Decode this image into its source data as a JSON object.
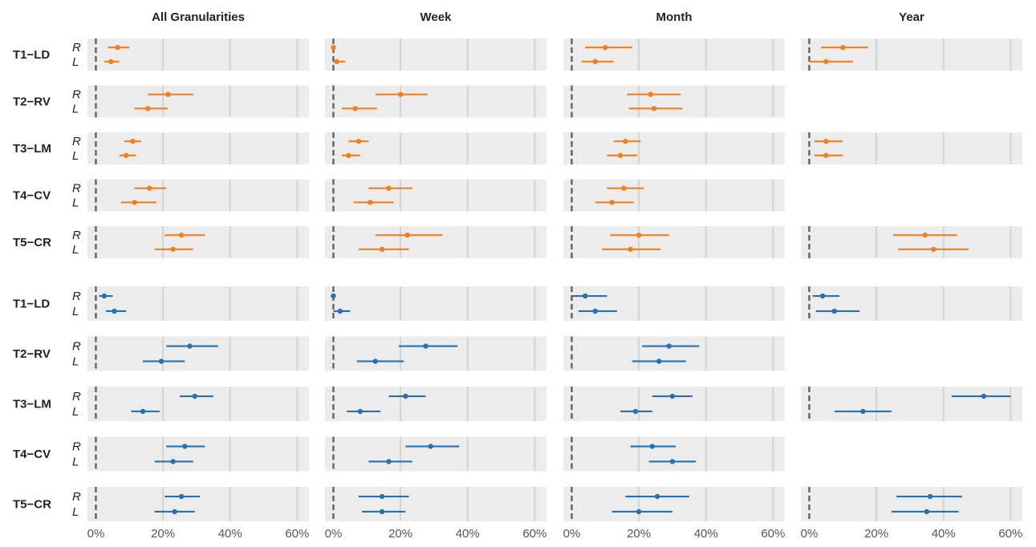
{
  "chart_data": {
    "type": "forest-interval",
    "columns": [
      "All Granularities",
      "Week",
      "Month",
      "Year"
    ],
    "xaxis": {
      "ticks": [
        0,
        20,
        40,
        60
      ],
      "tick_labels": [
        "0%",
        "20%",
        "40%",
        "60%"
      ],
      "xlim": [
        -2.5,
        63.5
      ],
      "reference_line": 0
    },
    "grid": true,
    "sides": [
      "R",
      "L"
    ],
    "colors": {
      "orange": "#f07f1e",
      "blue": "#2272b4"
    },
    "groups": [
      {
        "color": "orange",
        "rows": [
          {
            "label": "T1−LD",
            "cells": [
              {
                "R": [
                  3.5,
                  6.5,
                  10
                ],
                "L": [
                  2.5,
                  4.5,
                  7
                ]
              },
              {
                "R": [
                  0,
                  0,
                  0
                ],
                "L": [
                  0,
                  1,
                  3.5
                ]
              },
              {
                "R": [
                  4,
                  10,
                  18
                ],
                "L": [
                  3,
                  7,
                  12.5
                ]
              },
              {
                "R": [
                  3.5,
                  10,
                  17.5
                ],
                "L": [
                  0,
                  5,
                  13
                ]
              }
            ]
          },
          {
            "label": "T2−RV",
            "cells": [
              {
                "R": [
                  15.5,
                  21.5,
                  29
                ],
                "L": [
                  11.5,
                  15.5,
                  21.5
                ]
              },
              {
                "R": [
                  12.5,
                  20,
                  28
                ],
                "L": [
                  2.5,
                  6.5,
                  13
                ]
              },
              {
                "R": [
                  16.5,
                  23.5,
                  32.5
                ],
                "L": [
                  17,
                  24.5,
                  33
                ]
              },
              null
            ]
          },
          {
            "label": "T3−LM",
            "cells": [
              {
                "R": [
                  8.5,
                  11,
                  13.5
                ],
                "L": [
                  7,
                  9,
                  12
                ]
              },
              {
                "R": [
                  4.5,
                  7.5,
                  10.5
                ],
                "L": [
                  2.5,
                  4.5,
                  8
                ]
              },
              {
                "R": [
                  12.5,
                  16,
                  20.5
                ],
                "L": [
                  10.5,
                  14.5,
                  19.5
                ]
              },
              {
                "R": [
                  1.5,
                  5,
                  10
                ],
                "L": [
                  1.5,
                  5,
                  10
                ]
              }
            ]
          },
          {
            "label": "T4−CV",
            "cells": [
              {
                "R": [
                  11.5,
                  16,
                  21
                ],
                "L": [
                  7.5,
                  11.5,
                  18
                ]
              },
              {
                "R": [
                  10.5,
                  16.5,
                  23.5
                ],
                "L": [
                  6,
                  11,
                  18
                ]
              },
              {
                "R": [
                  10.5,
                  15.5,
                  21.5
                ],
                "L": [
                  7,
                  12,
                  18.5
                ]
              },
              null
            ]
          },
          {
            "label": "T5−CR",
            "cells": [
              {
                "R": [
                  20.5,
                  25.5,
                  32.5
                ],
                "L": [
                  17.5,
                  23,
                  29
                ]
              },
              {
                "R": [
                  12.5,
                  22,
                  32.5
                ],
                "L": [
                  7.5,
                  14.5,
                  22.5
                ]
              },
              {
                "R": [
                  11.5,
                  20,
                  29
                ],
                "L": [
                  9,
                  17.5,
                  26.5
                ]
              },
              {
                "R": [
                  25,
                  34.5,
                  44
                ],
                "L": [
                  26.5,
                  37,
                  47.5
                ]
              }
            ]
          }
        ]
      },
      {
        "color": "blue",
        "rows": [
          {
            "label": "T1−LD",
            "cells": [
              {
                "R": [
                  1,
                  2.5,
                  5
                ],
                "L": [
                  3,
                  5.5,
                  9
                ]
              },
              {
                "R": [
                  0,
                  0,
                  0
                ],
                "L": [
                  0,
                  2,
                  5
                ]
              },
              {
                "R": [
                  0,
                  4,
                  10.5
                ],
                "L": [
                  2,
                  7,
                  13.5
                ]
              },
              {
                "R": [
                  1,
                  4,
                  9
                ],
                "L": [
                  2,
                  7.5,
                  15
                ]
              }
            ]
          },
          {
            "label": "T2−RV",
            "cells": [
              {
                "R": [
                  21,
                  28,
                  36.5
                ],
                "L": [
                  14,
                  19.5,
                  26.5
                ]
              },
              {
                "R": [
                  19.5,
                  27.5,
                  37
                ],
                "L": [
                  7,
                  12.5,
                  21
                ]
              },
              {
                "R": [
                  21,
                  29,
                  38
                ],
                "L": [
                  18,
                  26,
                  34
                ]
              },
              null
            ]
          },
          {
            "label": "T3−LM",
            "cells": [
              {
                "R": [
                  25,
                  29.5,
                  35
                ],
                "L": [
                  10.5,
                  14,
                  19
                ]
              },
              {
                "R": [
                  16.5,
                  21.5,
                  27.5
                ],
                "L": [
                  4,
                  8,
                  14
                ]
              },
              {
                "R": [
                  24,
                  30,
                  36
                ],
                "L": [
                  14.5,
                  19,
                  24
                ]
              },
              {
                "R": [
                  42.5,
                  52,
                  60
                ],
                "L": [
                  7.5,
                  16,
                  24.5
                ]
              }
            ]
          },
          {
            "label": "T4−CV",
            "cells": [
              {
                "R": [
                  21,
                  26.5,
                  32.5
                ],
                "L": [
                  17.5,
                  23,
                  29
                ]
              },
              {
                "R": [
                  21.5,
                  29,
                  37.5
                ],
                "L": [
                  10.5,
                  16.5,
                  23.5
                ]
              },
              {
                "R": [
                  17.5,
                  24,
                  31
                ],
                "L": [
                  23,
                  30,
                  37
                ]
              },
              null
            ]
          },
          {
            "label": "T5−CR",
            "cells": [
              {
                "R": [
                  20.5,
                  25.5,
                  31
                ],
                "L": [
                  17.5,
                  23.5,
                  29.5
                ]
              },
              {
                "R": [
                  7.5,
                  14.5,
                  22.5
                ],
                "L": [
                  8.5,
                  14.5,
                  21.5
                ]
              },
              {
                "R": [
                  16,
                  25.5,
                  35
                ],
                "L": [
                  12,
                  20,
                  30
                ]
              },
              {
                "R": [
                  26,
                  36,
                  45.5
                ],
                "L": [
                  24.5,
                  35,
                  44.5
                ]
              }
            ]
          }
        ]
      }
    ]
  }
}
